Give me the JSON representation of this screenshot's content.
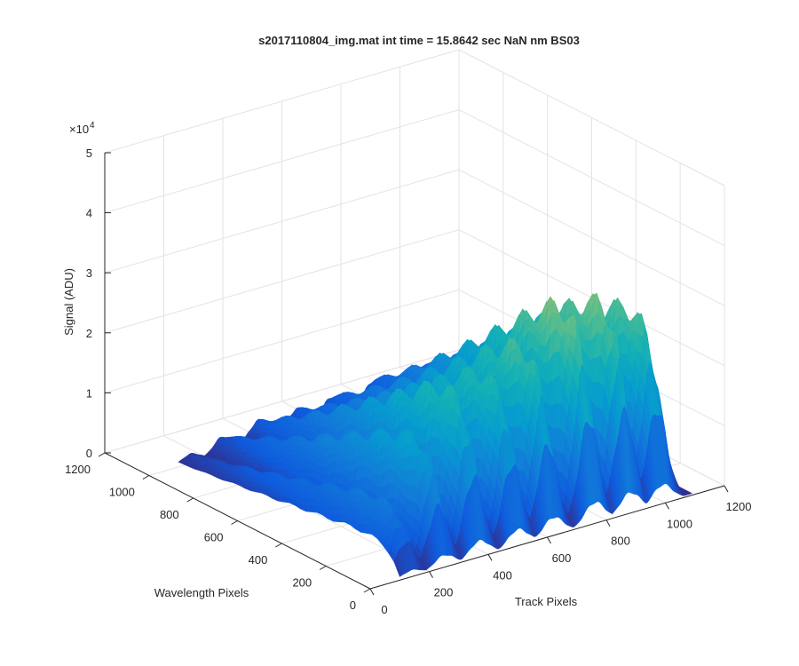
{
  "window": {
    "title": "s2017110804_img.mat int time = 15.8642 sec  NaN nm BS03"
  },
  "chart_data": {
    "type": "surface3d",
    "title": "s2017110804_img.mat int time = 15.8642 sec  NaN nm BS03",
    "xlabel": "Track Pixels",
    "ylabel": "Wavelength Pixels",
    "zlabel": "Signal (ADU)",
    "xlim": [
      0,
      1200
    ],
    "ylim": [
      0,
      1200
    ],
    "zlim": [
      0,
      50000
    ],
    "x_ticks": [
      "200",
      "400",
      "600",
      "800",
      "1000",
      "1200"
    ],
    "x_zero_label": "0",
    "y_ticks": [
      "200",
      "400",
      "600",
      "800",
      "1000",
      "1200"
    ],
    "y_zero_label": "0",
    "z_ticks": [
      "0",
      "1",
      "2",
      "3",
      "4",
      "5"
    ],
    "z_multiplier": "×10",
    "z_exponent": "4",
    "colormap": "parula",
    "grid": true,
    "data_extent": {
      "x": [
        100,
        1090
      ],
      "y": [
        0,
        1000
      ]
    },
    "peaks": [
      {
        "track": 140,
        "max_signal": 12500
      },
      {
        "track": 250,
        "max_signal": 23000
      },
      {
        "track": 370,
        "max_signal": 30500
      },
      {
        "track": 500,
        "max_signal": 31000
      },
      {
        "track": 620,
        "max_signal": 34500
      },
      {
        "track": 760,
        "max_signal": 40000
      },
      {
        "track": 880,
        "max_signal": 39000
      },
      {
        "track": 990,
        "max_signal": 36000
      }
    ]
  }
}
